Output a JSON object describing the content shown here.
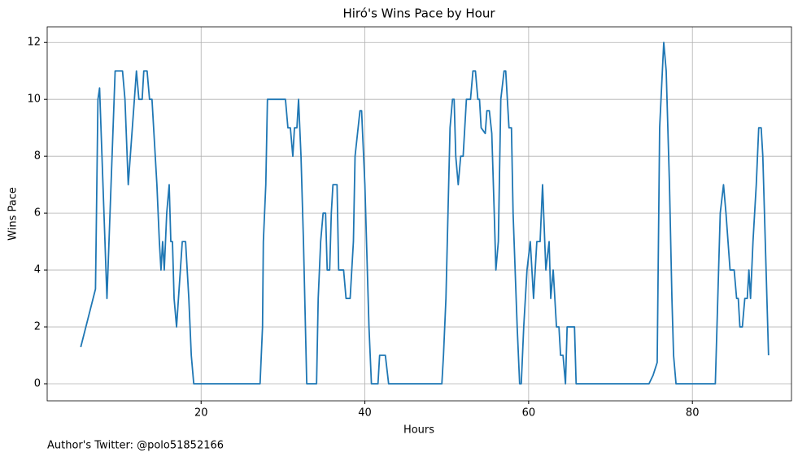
{
  "chart_data": {
    "type": "line",
    "title": "Hiró's Wins Pace by Hour",
    "x_label": "Hours",
    "y_label": "Wins Pace",
    "annotation": "Author's Twitter: @polo51852166",
    "xlim": [
      1.2,
      92.1
    ],
    "ylim": [
      -0.6,
      12.55
    ],
    "xticks": [
      20,
      40,
      60,
      80
    ],
    "yticks": [
      0,
      2,
      4,
      6,
      8,
      10,
      12
    ],
    "grid": true,
    "x": [
      5.3,
      7.1,
      7.4,
      7.6,
      8.5,
      9.5,
      10.4,
      10.7,
      11.1,
      12.1,
      12.4,
      12.8,
      13,
      13.4,
      13.7,
      14,
      14.6,
      14.9,
      15.1,
      15.3,
      15.5,
      15.8,
      16.1,
      16.3,
      16.5,
      16.7,
      17,
      17.7,
      18.1,
      18.5,
      18.8,
      19.1,
      27.2,
      27.5,
      27.6,
      27.9,
      28.1,
      30.3,
      30.6,
      30.9,
      31.2,
      31.4,
      31.7,
      31.9,
      32.2,
      32.5,
      32.9,
      34.1,
      34.3,
      34.6,
      34.9,
      35.2,
      35.4,
      35.7,
      35.9,
      36.1,
      36.6,
      36.8,
      37.4,
      37.7,
      38.2,
      38.6,
      38.8,
      39.4,
      39.6,
      40,
      40.5,
      40.8,
      41.6,
      41.8,
      42.5,
      42.9,
      49.4,
      49.6,
      49.9,
      50.4,
      50.7,
      50.9,
      51.1,
      51.4,
      51.7,
      52,
      52.4,
      52.9,
      53.2,
      53.5,
      53.8,
      54,
      54.2,
      54.7,
      54.9,
      55.2,
      55.5,
      55.8,
      56,
      56.3,
      56.6,
      57,
      57.2,
      57.6,
      57.9,
      58.1,
      58.6,
      58.9,
      59.1,
      59.4,
      59.8,
      60.2,
      60.6,
      61,
      61.4,
      61.7,
      62.1,
      62.5,
      62.7,
      63,
      63.4,
      63.7,
      63.9,
      64.2,
      64.5,
      64.7,
      65.6,
      65.8,
      74.7,
      75.2,
      75.7,
      76,
      76.5,
      76.8,
      77.2,
      77.5,
      77.7,
      78,
      82.8,
      83.1,
      83.4,
      83.8,
      84.1,
      84.6,
      85.1,
      85.4,
      85.6,
      85.8,
      86.1,
      86.4,
      86.7,
      86.9,
      87.1,
      87.4,
      87.8,
      88.1,
      88.4,
      88.6,
      89,
      89.3
    ],
    "series": [
      {
        "name": "Wins Pace",
        "color": "#1f77b4",
        "values": [
          1.29,
          3.33,
          10,
          10.4,
          3,
          11,
          11,
          10,
          7,
          11,
          10,
          10,
          11,
          11,
          10,
          10,
          7,
          5,
          4,
          5,
          4,
          6,
          7,
          5,
          5,
          3,
          2,
          5,
          5,
          3,
          1,
          0,
          0,
          2,
          5,
          7,
          10,
          10,
          9,
          9,
          8,
          9,
          9,
          10,
          8,
          5,
          0,
          0,
          3,
          5,
          6,
          6,
          4,
          4,
          6,
          7,
          7,
          4,
          4,
          3,
          3,
          5,
          8,
          9.6,
          9.6,
          7,
          2,
          0,
          0,
          1,
          1,
          0,
          0,
          1,
          3,
          9,
          10,
          10,
          8,
          7,
          8,
          8,
          10,
          10,
          11,
          11,
          10,
          10,
          9,
          8.8,
          9.6,
          9.6,
          8.8,
          6,
          4,
          5,
          10,
          11,
          11,
          9,
          9,
          6,
          2,
          0,
          0,
          2,
          4,
          5,
          3,
          5,
          5,
          7,
          4,
          5,
          3,
          4,
          2,
          2,
          1,
          1,
          0,
          2,
          2,
          0,
          0,
          0.3,
          0.75,
          9,
          12,
          11,
          7,
          3,
          1,
          0,
          0,
          3,
          6,
          7,
          6,
          4,
          4,
          3,
          3,
          2,
          2,
          3,
          3,
          4,
          3,
          5,
          7,
          9,
          9,
          8,
          4,
          1
        ]
      }
    ]
  }
}
